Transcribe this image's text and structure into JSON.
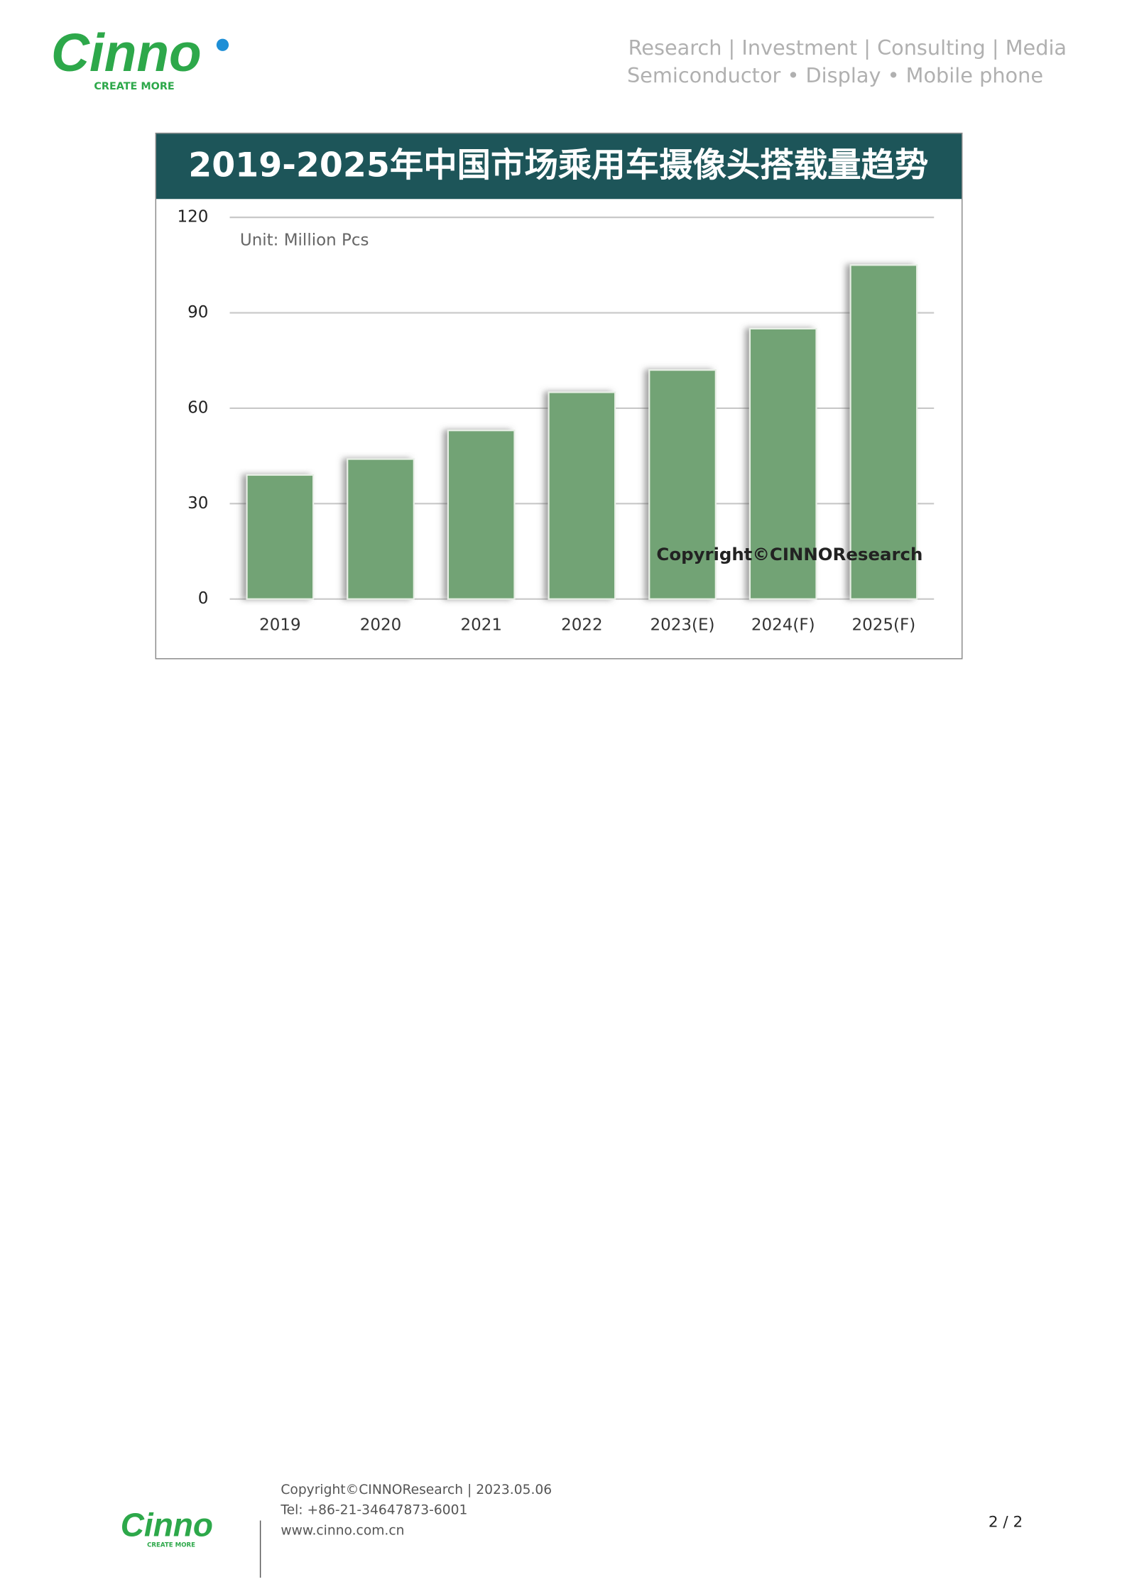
{
  "header": {
    "logo": "Cinno",
    "logo_tagline": "CREATE MORE",
    "services": "Research |  Investment | Consulting | Media",
    "fields": "Semiconductor • Display • Mobile phone"
  },
  "chart_data": {
    "type": "bar",
    "title": "2019-2025年中国市场乘用车摄像头搭载量趋势",
    "unit": "Unit: Million Pcs",
    "watermark": "Copyright©CINNOResearch",
    "categories": [
      "2019",
      "2020",
      "2021",
      "2022",
      "2023(E)",
      "2024(F)",
      "2025(F)"
    ],
    "values": [
      39,
      44,
      53,
      65,
      72,
      85,
      105
    ],
    "color": "#72a374",
    "ylim": [
      0,
      120
    ],
    "yticks": [
      0,
      30,
      60,
      90,
      120
    ],
    "grid": true
  },
  "footer": {
    "logo": "Cinno",
    "logo_tagline": "CREATE MORE",
    "copyright": "Copyright©CINNOResearch | 2023.05.06",
    "tel": "Tel: +86-21-34647873-6001",
    "website": "www.cinno.com.cn",
    "page": "2 / 2"
  }
}
